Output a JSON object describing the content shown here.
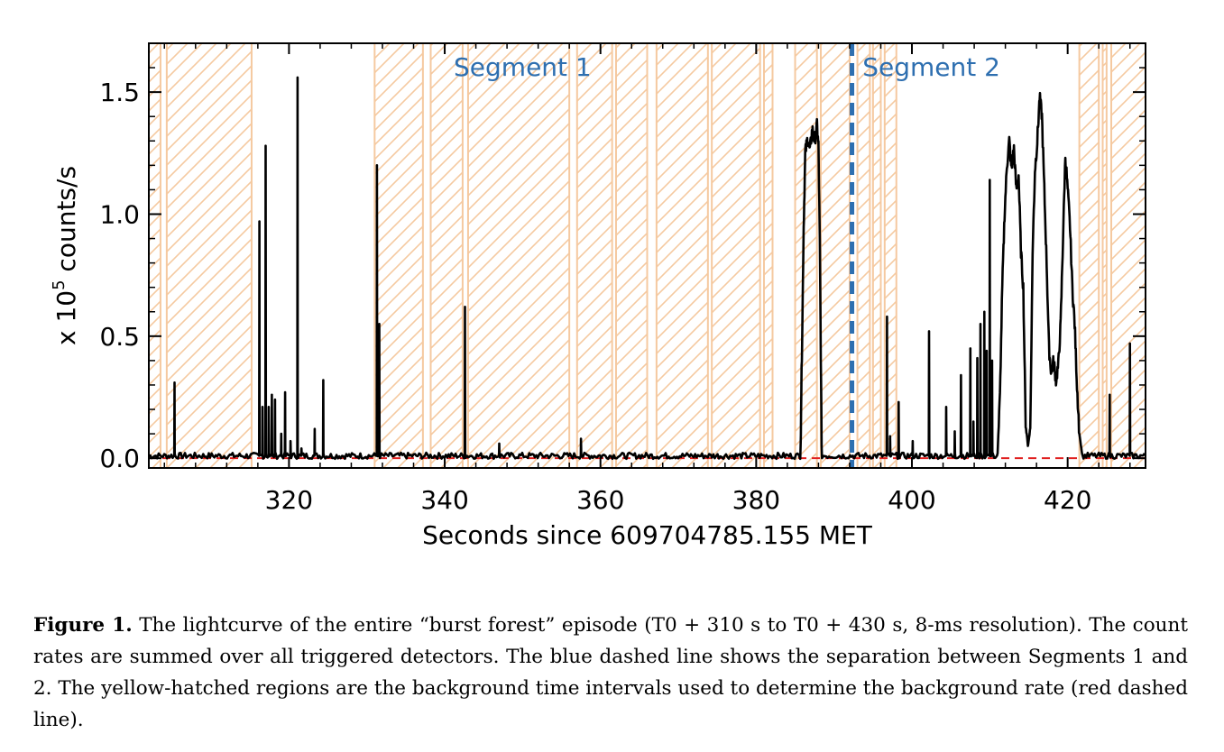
{
  "chart_data": {
    "type": "line",
    "ylabel": "x 10^5 counts/s",
    "ylabel_main": "x 10",
    "ylabel_exp": "5",
    "ylabel_unit": " counts/s",
    "xlabel": "Seconds since 609704785.155 MET",
    "xlim": [
      302,
      430
    ],
    "ylim": [
      -0.04,
      1.7
    ],
    "x_ticks": [
      320,
      340,
      360,
      380,
      400,
      420
    ],
    "y_ticks": [
      0.0,
      0.5,
      1.0,
      1.5
    ],
    "x_tick_labels": [
      "320",
      "340",
      "360",
      "380",
      "400",
      "420"
    ],
    "y_tick_labels": [
      "0.0",
      "0.5",
      "1.0",
      "1.5"
    ],
    "segment_labels": [
      {
        "text": "Segment 1",
        "x": 350
      },
      {
        "text": "Segment 2",
        "x": 402.5
      }
    ],
    "segment_separation_x": 392.3,
    "background_rate": 0.0,
    "background_intervals": [
      [
        302,
        303.5
      ],
      [
        304.3,
        315.2
      ],
      [
        331.0,
        337.2
      ],
      [
        338.2,
        342.3
      ],
      [
        343.0,
        356.0
      ],
      [
        357.0,
        361.5
      ],
      [
        362.0,
        366.0
      ],
      [
        367.2,
        373.8
      ],
      [
        374.3,
        380.5
      ],
      [
        381.0,
        382.1
      ],
      [
        385.0,
        387.8
      ],
      [
        388.3,
        392.0
      ],
      [
        393.0,
        394.6
      ],
      [
        395.0,
        396.0
      ],
      [
        396.5,
        398.0
      ],
      [
        421.5,
        424.0
      ],
      [
        424.5,
        425.0
      ],
      [
        425.6,
        430
      ]
    ],
    "series": [
      {
        "values_note": "",
        "baseline": 0.01,
        "spikes": [
          {
            "x": 305.3,
            "y": 0.31
          },
          {
            "x": 316.2,
            "y": 0.97
          },
          {
            "x": 316.6,
            "y": 0.21
          },
          {
            "x": 317.0,
            "y": 1.28
          },
          {
            "x": 317.4,
            "y": 0.21
          },
          {
            "x": 317.8,
            "y": 0.26
          },
          {
            "x": 318.2,
            "y": 0.24
          },
          {
            "x": 319.0,
            "y": 0.1
          },
          {
            "x": 319.5,
            "y": 0.27
          },
          {
            "x": 320.2,
            "y": 0.07
          },
          {
            "x": 321.1,
            "y": 1.56
          },
          {
            "x": 321.6,
            "y": 0.04
          },
          {
            "x": 323.3,
            "y": 0.12
          },
          {
            "x": 324.4,
            "y": 0.32
          },
          {
            "x": 331.3,
            "y": 1.2
          },
          {
            "x": 331.6,
            "y": 0.55
          },
          {
            "x": 342.6,
            "y": 0.62
          },
          {
            "x": 347.0,
            "y": 0.06
          },
          {
            "x": 357.5,
            "y": 0.08
          },
          {
            "x": 396.8,
            "y": 0.58
          },
          {
            "x": 397.2,
            "y": 0.09
          },
          {
            "x": 398.3,
            "y": 0.23
          },
          {
            "x": 400.1,
            "y": 0.07
          },
          {
            "x": 402.2,
            "y": 0.52
          },
          {
            "x": 404.4,
            "y": 0.21
          },
          {
            "x": 405.5,
            "y": 0.11
          },
          {
            "x": 406.3,
            "y": 0.34
          },
          {
            "x": 407.5,
            "y": 0.45
          },
          {
            "x": 407.9,
            "y": 0.15
          },
          {
            "x": 408.4,
            "y": 0.41
          },
          {
            "x": 408.8,
            "y": 0.55
          },
          {
            "x": 409.3,
            "y": 0.6
          },
          {
            "x": 409.6,
            "y": 0.44
          },
          {
            "x": 410.0,
            "y": 1.14
          },
          {
            "x": 410.3,
            "y": 0.4
          },
          {
            "x": 425.4,
            "y": 0.26
          },
          {
            "x": 428.0,
            "y": 0.47
          }
        ],
        "plateau": [
          [
            385.7,
            0.05
          ],
          [
            385.9,
            0.5
          ],
          [
            386.1,
            0.95
          ],
          [
            386.3,
            1.25
          ],
          [
            386.6,
            1.31
          ],
          [
            386.9,
            1.26
          ],
          [
            387.2,
            1.35
          ],
          [
            387.5,
            1.3
          ],
          [
            387.8,
            1.36
          ],
          [
            388.0,
            1.28
          ],
          [
            388.2,
            0.8
          ],
          [
            388.4,
            0.05
          ]
        ],
        "complex": [
          [
            411.0,
            0.02
          ],
          [
            411.3,
            0.25
          ],
          [
            411.6,
            0.7
          ],
          [
            411.9,
            1.0
          ],
          [
            412.2,
            1.2
          ],
          [
            412.5,
            1.3
          ],
          [
            412.8,
            1.18
          ],
          [
            413.1,
            1.27
          ],
          [
            413.4,
            1.1
          ],
          [
            413.7,
            1.16
          ],
          [
            414.0,
            0.85
          ],
          [
            414.3,
            0.7
          ],
          [
            414.6,
            0.15
          ],
          [
            414.9,
            0.05
          ],
          [
            415.2,
            0.12
          ],
          [
            415.5,
            0.85
          ],
          [
            415.8,
            1.18
          ],
          [
            416.1,
            1.3
          ],
          [
            416.4,
            1.48
          ],
          [
            416.7,
            1.4
          ],
          [
            417.0,
            1.1
          ],
          [
            417.3,
            0.8
          ],
          [
            417.6,
            0.45
          ],
          [
            417.9,
            0.35
          ],
          [
            418.2,
            0.4
          ],
          [
            418.5,
            0.32
          ],
          [
            418.8,
            0.38
          ],
          [
            419.1,
            0.55
          ],
          [
            419.4,
            0.9
          ],
          [
            419.7,
            1.24
          ],
          [
            420.0,
            1.1
          ],
          [
            420.3,
            0.95
          ],
          [
            420.6,
            0.7
          ],
          [
            420.9,
            0.55
          ],
          [
            421.2,
            0.3
          ],
          [
            421.5,
            0.1
          ],
          [
            421.8,
            0.03
          ]
        ]
      }
    ]
  },
  "caption": {
    "label": "Figure 1.",
    "text": "The lightcurve of the entire “burst forest” episode (T0 + 310 s to T0 + 430 s, 8-ms resolution). The count rates are summed over all triggered detectors. The blue dashed line shows the separation between Segments 1 and 2. The yellow-hatched regions are the background time intervals used to determine the background rate (red dashed line)."
  }
}
